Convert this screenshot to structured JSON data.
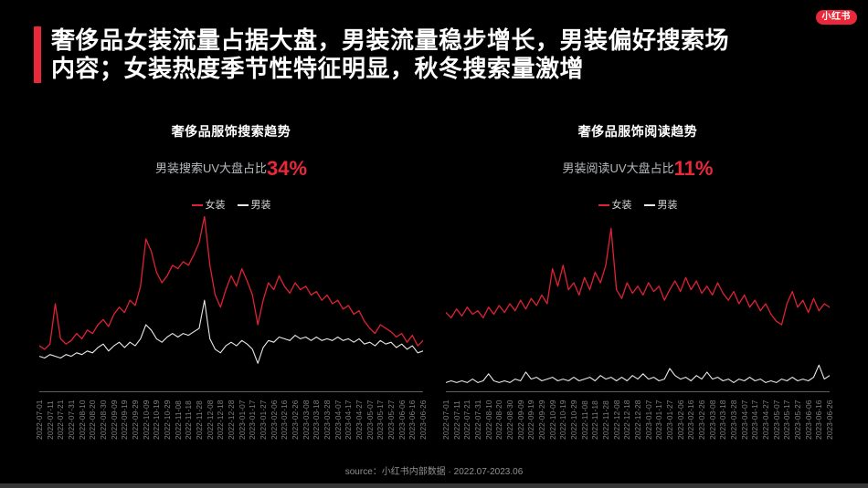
{
  "page": {
    "logo_text": "小红书",
    "source_note": "source：小红书内部数据 · 2022.07-2023.06",
    "colors": {
      "accent_red": "#e8293c",
      "line_red": "#de2233",
      "line_white": "#e9e9e9",
      "background": "#000000"
    }
  },
  "header": {
    "title_lines": [
      "奢侈品女装流量占据大盘，男装流量稳步增长，男装偏好搜索场",
      "内容；女装热度季节性特征明显，秋冬搜索量激增"
    ]
  },
  "chart_data": [
    {
      "type": "line",
      "title": "奢侈品服饰搜索趋势",
      "subtitle_prefix": "男装搜索UV大盘占比",
      "subtitle_value": "34%",
      "legend_position": "top-center",
      "grid": false,
      "y_axis_visible": false,
      "ylim": [
        0,
        100
      ],
      "value_scale": "relative search UV index 0-100 (estimated from pixels, one point per ~5 days)",
      "x_tick_labels": [
        "2022-07-01",
        "2022-07-11",
        "2022-07-21",
        "2022-07-31",
        "2022-08-10",
        "2022-08-20",
        "2022-08-30",
        "2022-09-09",
        "2022-09-19",
        "2022-09-29",
        "2022-10-09",
        "2022-10-19",
        "2022-10-29",
        "2022-11-08",
        "2022-11-18",
        "2022-11-28",
        "2022-12-08",
        "2022-12-18",
        "2022-12-28",
        "2023-01-07",
        "2023-01-17",
        "2023-01-27",
        "2023-02-06",
        "2023-02-16",
        "2023-02-26",
        "2023-03-08",
        "2023-03-18",
        "2023-03-28",
        "2023-04-07",
        "2023-04-17",
        "2023-04-27",
        "2023-05-07",
        "2023-05-17",
        "2023-05-27",
        "2023-06-06",
        "2023-06-16",
        "2023-06-26"
      ],
      "series": [
        {
          "name": "女装",
          "slug": "women",
          "color": "#de2233",
          "values": [
            26,
            24,
            27,
            50,
            30,
            27,
            29,
            33,
            30,
            35,
            33,
            38,
            41,
            37,
            44,
            48,
            45,
            52,
            49,
            60,
            87,
            80,
            68,
            62,
            66,
            72,
            70,
            74,
            72,
            78,
            85,
            100,
            72,
            55,
            48,
            58,
            66,
            60,
            70,
            63,
            55,
            38,
            52,
            62,
            58,
            66,
            60,
            56,
            62,
            58,
            60,
            55,
            57,
            52,
            55,
            50,
            52,
            47,
            49,
            44,
            46,
            40,
            36,
            33,
            38,
            36,
            34,
            31,
            33,
            28,
            32,
            26,
            29
          ]
        },
        {
          "name": "男装",
          "slug": "men",
          "color": "#e9e9e9",
          "values": [
            20,
            19,
            21,
            20,
            19,
            21,
            20,
            22,
            21,
            23,
            22,
            25,
            27,
            23,
            26,
            28,
            25,
            28,
            26,
            30,
            38,
            35,
            30,
            28,
            31,
            33,
            31,
            33,
            32,
            34,
            36,
            52,
            30,
            24,
            22,
            26,
            28,
            26,
            29,
            27,
            24,
            16,
            25,
            29,
            28,
            31,
            30,
            29,
            32,
            30,
            31,
            29,
            31,
            29,
            30,
            29,
            31,
            29,
            30,
            28,
            30,
            27,
            28,
            26,
            29,
            27,
            28,
            25,
            27,
            24,
            26,
            22,
            23
          ]
        }
      ]
    },
    {
      "type": "line",
      "title": "奢侈品服饰阅读趋势",
      "subtitle_prefix": "男装阅读UV大盘占比",
      "subtitle_value": "11%",
      "legend_position": "top-center",
      "grid": false,
      "y_axis_visible": false,
      "ylim": [
        0,
        100
      ],
      "value_scale": "relative reading UV index 0-100 (estimated from pixels, one point per ~5 days)",
      "x_tick_labels": [
        "2022-07-01",
        "2022-07-11",
        "2022-07-21",
        "2022-07-31",
        "2022-08-10",
        "2022-08-20",
        "2022-08-30",
        "2022-09-09",
        "2022-09-19",
        "2022-09-29",
        "2022-10-09",
        "2022-10-19",
        "2022-10-29",
        "2022-11-08",
        "2022-11-18",
        "2022-11-28",
        "2022-12-08",
        "2022-12-18",
        "2022-12-28",
        "2023-01-07",
        "2023-01-17",
        "2023-01-27",
        "2023-02-06",
        "2023-02-16",
        "2023-02-26",
        "2023-03-08",
        "2023-03-18",
        "2023-03-28",
        "2023-04-07",
        "2023-04-17",
        "2023-04-27",
        "2023-05-07",
        "2023-05-17",
        "2023-05-27",
        "2023-06-06",
        "2023-06-16",
        "2023-06-26"
      ],
      "series": [
        {
          "name": "女装",
          "slug": "women",
          "color": "#de2233",
          "values": [
            45,
            42,
            47,
            43,
            48,
            44,
            46,
            42,
            48,
            44,
            49,
            45,
            50,
            46,
            52,
            47,
            53,
            49,
            55,
            50,
            70,
            60,
            72,
            58,
            62,
            55,
            65,
            58,
            68,
            62,
            72,
            93,
            58,
            53,
            62,
            56,
            60,
            55,
            62,
            57,
            60,
            52,
            58,
            63,
            57,
            65,
            58,
            63,
            56,
            60,
            55,
            62,
            56,
            52,
            57,
            50,
            55,
            48,
            52,
            46,
            50,
            44,
            40,
            38,
            50,
            57,
            48,
            52,
            45,
            53,
            46,
            50,
            48
          ]
        },
        {
          "name": "男装",
          "slug": "men",
          "color": "#e9e9e9",
          "values": [
            5,
            6,
            5,
            6,
            5,
            7,
            5,
            6,
            10,
            6,
            5,
            6,
            5,
            7,
            6,
            11,
            7,
            8,
            6,
            7,
            8,
            6,
            7,
            6,
            8,
            6,
            7,
            8,
            6,
            9,
            7,
            8,
            6,
            8,
            6,
            9,
            7,
            10,
            7,
            8,
            6,
            7,
            13,
            9,
            7,
            8,
            6,
            9,
            7,
            11,
            7,
            8,
            6,
            7,
            5,
            7,
            6,
            8,
            6,
            7,
            5,
            6,
            5,
            7,
            6,
            8,
            6,
            7,
            6,
            8,
            15,
            7,
            9
          ]
        }
      ]
    }
  ]
}
